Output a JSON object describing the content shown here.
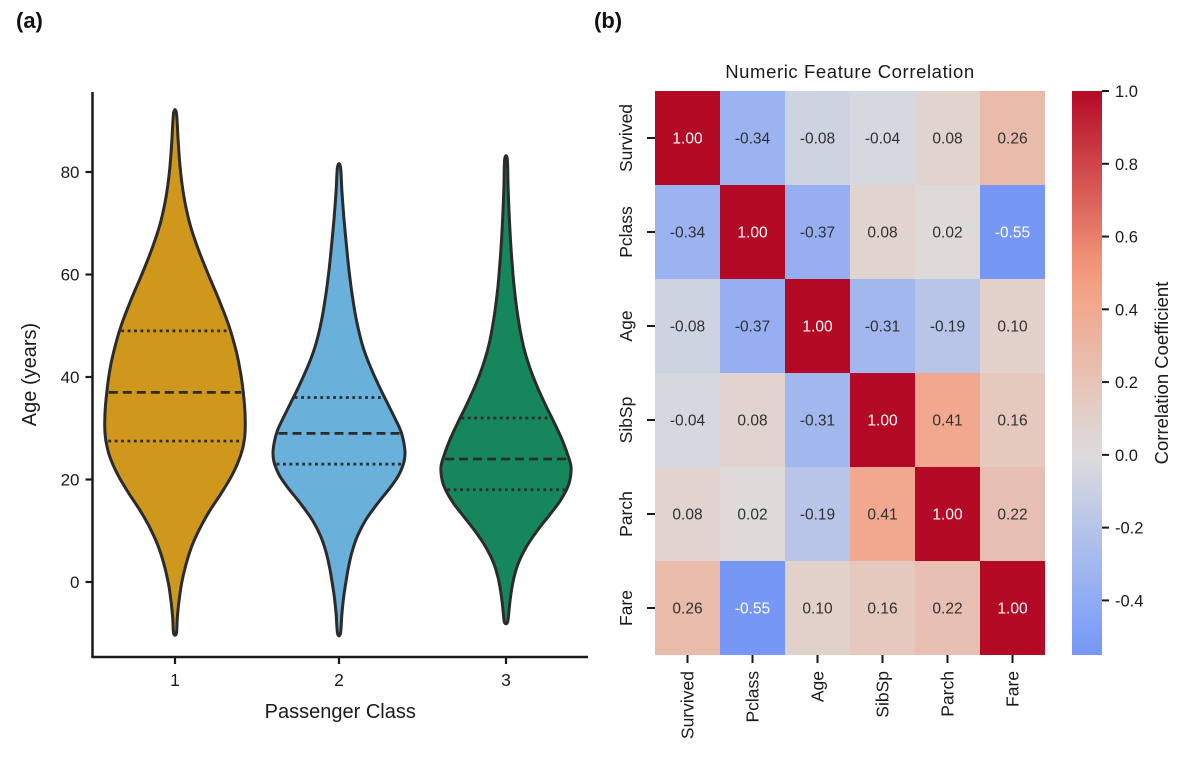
{
  "panels": {
    "a_label": "(a)",
    "b_label": "(b)"
  },
  "colors": {
    "background": "#ffffff",
    "axis": "#1a1a1a",
    "violin_edge": "#2b2b2b",
    "quartile_line": "#2b2b2b",
    "cell_text_dark": "#303030",
    "cell_text_light": "#ffffff",
    "heatmap_max_red": "#b40a26",
    "heatmap_min_blue": "#7597f3"
  },
  "chart_data": [
    {
      "type": "violin",
      "panel": "a",
      "xlabel": "Passenger Class",
      "ylabel": "Age (years)",
      "categories": [
        "1",
        "2",
        "3"
      ],
      "yticks": [
        0,
        20,
        40,
        60,
        80
      ],
      "ylim": [
        -15,
        96
      ],
      "inner": "quartile",
      "edge_color": "#2b2b2b",
      "series": [
        {
          "name": "1",
          "color": "#CF981C",
          "q1": 27.5,
          "median": 37,
          "q3": 49,
          "tip_low": -10,
          "tip_high": 91.5,
          "profile": [
            [
              91.5,
              0.02
            ],
            [
              86,
              0.045
            ],
            [
              80,
              0.08
            ],
            [
              75,
              0.13
            ],
            [
              70,
              0.21
            ],
            [
              65,
              0.33
            ],
            [
              60,
              0.475
            ],
            [
              55,
              0.63
            ],
            [
              50,
              0.77
            ],
            [
              45,
              0.875
            ],
            [
              41,
              0.935
            ],
            [
              37,
              0.975
            ],
            [
              33,
              1.0
            ],
            [
              29,
              1.0
            ],
            [
              26,
              0.965
            ],
            [
              23,
              0.89
            ],
            [
              20,
              0.78
            ],
            [
              17,
              0.645
            ],
            [
              14,
              0.5
            ],
            [
              11,
              0.375
            ],
            [
              8,
              0.27
            ],
            [
              5,
              0.19
            ],
            [
              2,
              0.13
            ],
            [
              -1,
              0.085
            ],
            [
              -4,
              0.055
            ],
            [
              -7,
              0.033
            ],
            [
              -10,
              0.02
            ]
          ]
        },
        {
          "name": "2",
          "color": "#69B0DA",
          "q1": 23,
          "median": 29,
          "q3": 36,
          "tip_low": -10,
          "tip_high": 81,
          "profile": [
            [
              81,
              0.022
            ],
            [
              76,
              0.045
            ],
            [
              71,
              0.075
            ],
            [
              66,
              0.11
            ],
            [
              61,
              0.15
            ],
            [
              56,
              0.2
            ],
            [
              51,
              0.265
            ],
            [
              46,
              0.36
            ],
            [
              42,
              0.475
            ],
            [
              38,
              0.615
            ],
            [
              35,
              0.73
            ],
            [
              32,
              0.845
            ],
            [
              29.5,
              0.935
            ],
            [
              27,
              0.985
            ],
            [
              25,
              1.0
            ],
            [
              23,
              0.975
            ],
            [
              20.5,
              0.89
            ],
            [
              18,
              0.75
            ],
            [
              15,
              0.565
            ],
            [
              12,
              0.4
            ],
            [
              9,
              0.28
            ],
            [
              6,
              0.2
            ],
            [
              3,
              0.145
            ],
            [
              0,
              0.105
            ],
            [
              -3,
              0.07
            ],
            [
              -6,
              0.045
            ],
            [
              -10,
              0.022
            ]
          ]
        },
        {
          "name": "3",
          "color": "#16875C",
          "q1": 18,
          "median": 24,
          "q3": 32,
          "tip_low": -7.8,
          "tip_high": 82.5,
          "profile": [
            [
              82.5,
              0.02
            ],
            [
              77,
              0.032
            ],
            [
              72,
              0.048
            ],
            [
              67,
              0.068
            ],
            [
              62,
              0.095
            ],
            [
              57,
              0.13
            ],
            [
              52,
              0.18
            ],
            [
              47,
              0.25
            ],
            [
              43,
              0.335
            ],
            [
              39,
              0.45
            ],
            [
              35,
              0.59
            ],
            [
              31,
              0.745
            ],
            [
              28,
              0.855
            ],
            [
              25,
              0.945
            ],
            [
              22.5,
              1.0
            ],
            [
              20,
              0.985
            ],
            [
              18,
              0.93
            ],
            [
              15.5,
              0.815
            ],
            [
              13,
              0.665
            ],
            [
              10,
              0.48
            ],
            [
              7,
              0.32
            ],
            [
              4,
              0.2
            ],
            [
              1,
              0.125
            ],
            [
              -2,
              0.08
            ],
            [
              -5,
              0.05
            ],
            [
              -7.8,
              0.025
            ]
          ]
        }
      ]
    },
    {
      "type": "heatmap",
      "panel": "b",
      "title": "Numeric Feature Correlation",
      "labels": [
        "Survived",
        "Pclass",
        "Age",
        "SibSp",
        "Parch",
        "Fare"
      ],
      "matrix": [
        [
          1.0,
          -0.34,
          -0.08,
          -0.04,
          0.08,
          0.26
        ],
        [
          -0.34,
          1.0,
          -0.37,
          0.08,
          0.02,
          -0.55
        ],
        [
          -0.08,
          -0.37,
          1.0,
          -0.31,
          -0.19,
          0.1
        ],
        [
          -0.04,
          0.08,
          -0.31,
          1.0,
          0.41,
          0.16
        ],
        [
          0.08,
          0.02,
          -0.19,
          0.41,
          1.0,
          0.22
        ],
        [
          0.26,
          -0.55,
          0.1,
          0.16,
          0.22,
          1.0
        ]
      ],
      "colormap": "coolwarm",
      "colorbar": {
        "label": "Correlation Coefficient",
        "ticks": [
          1.0,
          0.8,
          0.6,
          0.4,
          0.2,
          0.0,
          -0.2,
          -0.4
        ],
        "vmin": -0.55,
        "vmax": 1.0
      }
    }
  ]
}
